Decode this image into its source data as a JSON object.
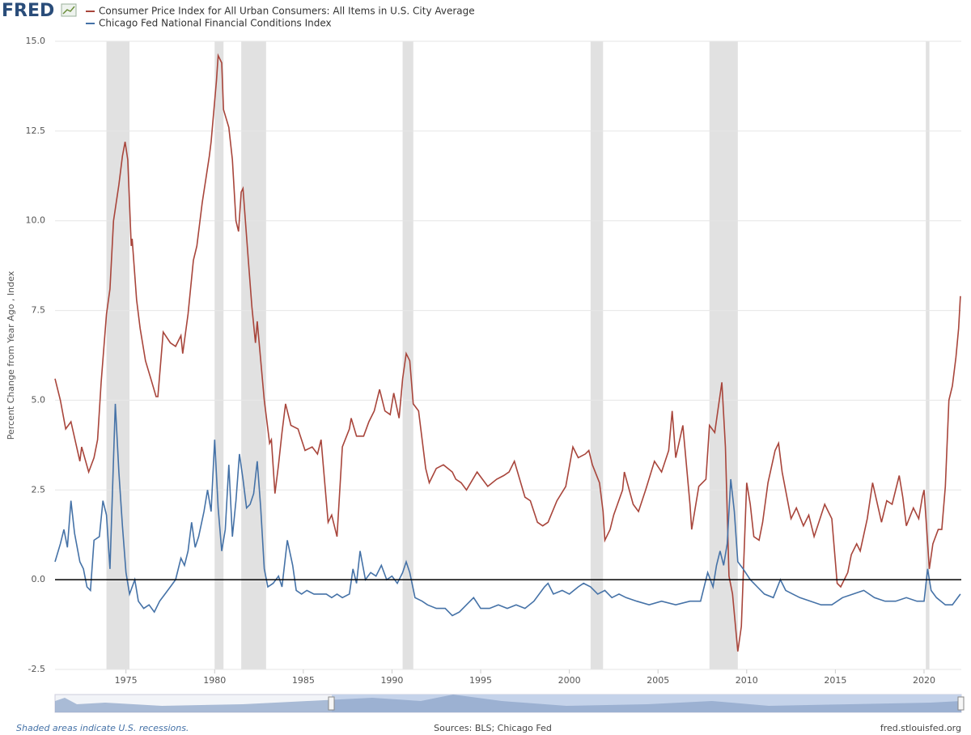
{
  "logo": "FRED",
  "chart_data": {
    "type": "line",
    "y_label": "Percent Change from Year Ago , Index",
    "series": [
      {
        "name": "Consumer Price Index for All Urban Consumers: All Items in U.S. City Average",
        "color": "#a8453b",
        "x": [
          1971.0,
          1971.3,
          1971.6,
          1971.9,
          1972.4,
          1972.5,
          1972.9,
          1973.2,
          1973.4,
          1973.6,
          1973.9,
          1974.1,
          1974.3,
          1974.6,
          1974.8,
          1974.95,
          1975.1,
          1975.3,
          1975.35,
          1975.6,
          1975.8,
          1976.1,
          1976.4,
          1976.7,
          1976.8,
          1977.1,
          1977.5,
          1977.8,
          1978.1,
          1978.2,
          1978.5,
          1978.8,
          1979.0,
          1979.3,
          1979.7,
          1979.8,
          1980.1,
          1980.2,
          1980.4,
          1980.5,
          1980.8,
          1981.0,
          1981.2,
          1981.35,
          1981.5,
          1981.6,
          1981.9,
          1982.1,
          1982.3,
          1982.4,
          1982.8,
          1983.1,
          1983.2,
          1983.4,
          1983.6,
          1983.8,
          1984.0,
          1984.3,
          1984.7,
          1985.1,
          1985.5,
          1985.8,
          1986.0,
          1986.4,
          1986.6,
          1986.9,
          1987.2,
          1987.6,
          1987.7,
          1988.0,
          1988.4,
          1988.7,
          1989.0,
          1989.3,
          1989.6,
          1989.9,
          1990.1,
          1990.4,
          1990.6,
          1990.8,
          1991.0,
          1991.2,
          1991.5,
          1991.9,
          1992.1,
          1992.5,
          1992.9,
          1993.4,
          1993.6,
          1993.9,
          1994.2,
          1994.8,
          1995.4,
          1995.9,
          1996.3,
          1996.6,
          1996.9,
          1997.5,
          1997.8,
          1998.2,
          1998.5,
          1998.8,
          1999.3,
          1999.8,
          2000.2,
          2000.5,
          2000.9,
          2001.1,
          2001.3,
          2001.7,
          2001.9,
          2002.0,
          2002.3,
          2002.5,
          2003.0,
          2003.1,
          2003.6,
          2003.9,
          2004.3,
          2004.8,
          2005.2,
          2005.6,
          2005.8,
          2006.0,
          2006.4,
          2006.8,
          2006.9,
          2007.3,
          2007.7,
          2007.9,
          2008.2,
          2008.6,
          2008.8,
          2009.0,
          2009.2,
          2009.5,
          2009.7,
          2010.0,
          2010.2,
          2010.4,
          2010.7,
          2010.9,
          2011.2,
          2011.6,
          2011.8,
          2012.0,
          2012.5,
          2012.8,
          2013.2,
          2013.5,
          2013.8,
          2014.0,
          2014.4,
          2014.8,
          2015.1,
          2015.3,
          2015.7,
          2015.9,
          2016.2,
          2016.4,
          2016.8,
          2017.1,
          2017.6,
          2017.9,
          2018.2,
          2018.6,
          2018.8,
          2019.0,
          2019.4,
          2019.7,
          2019.9,
          2020.0,
          2020.3,
          2020.5,
          2020.8,
          2021.0,
          2021.2,
          2021.4,
          2021.6,
          2021.8,
          2021.95,
          2022.05
        ],
        "values": [
          5.6,
          5.0,
          4.2,
          4.4,
          3.3,
          3.7,
          3.0,
          3.4,
          3.9,
          5.5,
          7.4,
          8.1,
          10.0,
          11.0,
          11.8,
          12.2,
          11.7,
          9.3,
          9.5,
          7.8,
          7.0,
          6.1,
          5.6,
          5.1,
          5.1,
          6.9,
          6.6,
          6.5,
          6.8,
          6.3,
          7.4,
          8.9,
          9.3,
          10.5,
          11.8,
          12.2,
          13.9,
          14.6,
          14.4,
          13.1,
          12.6,
          11.7,
          10.0,
          9.7,
          10.8,
          10.9,
          8.9,
          7.6,
          6.6,
          7.2,
          5.0,
          3.8,
          3.9,
          2.4,
          3.2,
          4.1,
          4.9,
          4.3,
          4.2,
          3.6,
          3.7,
          3.5,
          3.9,
          1.6,
          1.8,
          1.2,
          3.7,
          4.2,
          4.5,
          4.0,
          4.0,
          4.4,
          4.7,
          5.3,
          4.7,
          4.6,
          5.2,
          4.5,
          5.6,
          6.3,
          6.1,
          4.9,
          4.7,
          3.1,
          2.7,
          3.1,
          3.2,
          3.0,
          2.8,
          2.7,
          2.5,
          3.0,
          2.6,
          2.8,
          2.9,
          3.0,
          3.3,
          2.3,
          2.2,
          1.6,
          1.5,
          1.6,
          2.2,
          2.6,
          3.7,
          3.4,
          3.5,
          3.6,
          3.2,
          2.7,
          1.9,
          1.1,
          1.4,
          1.8,
          2.5,
          3.0,
          2.1,
          1.9,
          2.5,
          3.3,
          3.0,
          3.6,
          4.7,
          3.4,
          4.3,
          2.1,
          1.4,
          2.6,
          2.8,
          4.3,
          4.1,
          5.5,
          3.7,
          0.1,
          -0.4,
          -2.0,
          -1.3,
          2.7,
          2.1,
          1.2,
          1.1,
          1.6,
          2.7,
          3.6,
          3.8,
          3.0,
          1.7,
          2.0,
          1.5,
          1.8,
          1.2,
          1.5,
          2.1,
          1.7,
          -0.1,
          -0.2,
          0.2,
          0.7,
          1.0,
          0.8,
          1.7,
          2.7,
          1.6,
          2.2,
          2.1,
          2.9,
          2.3,
          1.5,
          2.0,
          1.7,
          2.3,
          2.5,
          0.3,
          1.0,
          1.4,
          1.4,
          2.6,
          5.0,
          5.4,
          6.2,
          7.0,
          7.9
        ]
      },
      {
        "name": "Chicago Fed National Financial Conditions Index",
        "color": "#4572a7",
        "x": [
          1971.0,
          1971.3,
          1971.5,
          1971.7,
          1971.9,
          1972.1,
          1972.4,
          1972.6,
          1972.8,
          1973.0,
          1973.2,
          1973.5,
          1973.7,
          1973.9,
          1974.1,
          1974.4,
          1974.6,
          1974.8,
          1975.0,
          1975.2,
          1975.5,
          1975.7,
          1976.0,
          1976.3,
          1976.6,
          1976.9,
          1977.2,
          1977.5,
          1977.8,
          1978.1,
          1978.3,
          1978.5,
          1978.7,
          1978.9,
          1979.1,
          1979.4,
          1979.6,
          1979.8,
          1980.0,
          1980.2,
          1980.4,
          1980.6,
          1980.8,
          1981.0,
          1981.2,
          1981.4,
          1981.6,
          1981.8,
          1982.0,
          1982.2,
          1982.4,
          1982.6,
          1982.8,
          1983.0,
          1983.3,
          1983.6,
          1983.8,
          1984.1,
          1984.4,
          1984.6,
          1984.9,
          1985.2,
          1985.6,
          1986.0,
          1986.3,
          1986.6,
          1986.9,
          1987.2,
          1987.6,
          1987.8,
          1988.0,
          1988.2,
          1988.5,
          1988.8,
          1989.1,
          1989.4,
          1989.7,
          1990.0,
          1990.3,
          1990.6,
          1990.8,
          1991.0,
          1991.3,
          1991.7,
          1992.0,
          1992.5,
          1993.0,
          1993.4,
          1993.8,
          1994.2,
          1994.6,
          1995.0,
          1995.5,
          1996.0,
          1996.5,
          1997.0,
          1997.5,
          1998.0,
          1998.6,
          1998.8,
          1999.1,
          1999.6,
          2000.0,
          2000.5,
          2000.8,
          2001.2,
          2001.6,
          2002.0,
          2002.4,
          2002.8,
          2003.2,
          2003.8,
          2004.5,
          2005.2,
          2006.0,
          2006.8,
          2007.4,
          2007.8,
          2008.1,
          2008.3,
          2008.5,
          2008.7,
          2008.9,
          2009.1,
          2009.3,
          2009.5,
          2009.8,
          2010.2,
          2010.6,
          2011.0,
          2011.5,
          2011.9,
          2012.2,
          2012.6,
          2013.0,
          2013.6,
          2014.2,
          2014.8,
          2015.4,
          2016.0,
          2016.6,
          2017.2,
          2017.8,
          2018.4,
          2019.0,
          2019.6,
          2020.0,
          2020.2,
          2020.4,
          2020.7,
          2021.2,
          2021.6,
          2022.05
        ],
        "values": [
          0.5,
          1.0,
          1.4,
          0.9,
          2.2,
          1.3,
          0.5,
          0.3,
          -0.2,
          -0.3,
          1.1,
          1.2,
          2.2,
          1.8,
          0.3,
          4.9,
          3.0,
          1.5,
          0.2,
          -0.4,
          0.0,
          -0.6,
          -0.8,
          -0.7,
          -0.9,
          -0.6,
          -0.4,
          -0.2,
          0.0,
          0.6,
          0.4,
          0.8,
          1.6,
          0.9,
          1.2,
          1.9,
          2.5,
          1.9,
          3.9,
          2.0,
          0.8,
          1.4,
          3.2,
          1.2,
          2.2,
          3.5,
          2.8,
          2.0,
          2.1,
          2.4,
          3.3,
          2.0,
          0.3,
          -0.2,
          -0.1,
          0.1,
          -0.2,
          1.1,
          0.4,
          -0.3,
          -0.4,
          -0.3,
          -0.4,
          -0.4,
          -0.4,
          -0.5,
          -0.4,
          -0.5,
          -0.4,
          0.3,
          -0.1,
          0.8,
          0.0,
          0.2,
          0.1,
          0.4,
          0.0,
          0.1,
          -0.1,
          0.2,
          0.5,
          0.2,
          -0.5,
          -0.6,
          -0.7,
          -0.8,
          -0.8,
          -1.0,
          -0.9,
          -0.7,
          -0.5,
          -0.8,
          -0.8,
          -0.7,
          -0.8,
          -0.7,
          -0.8,
          -0.6,
          -0.2,
          -0.1,
          -0.4,
          -0.3,
          -0.4,
          -0.2,
          -0.1,
          -0.2,
          -0.4,
          -0.3,
          -0.5,
          -0.4,
          -0.5,
          -0.6,
          -0.7,
          -0.6,
          -0.7,
          -0.6,
          -0.6,
          0.2,
          -0.2,
          0.4,
          0.8,
          0.4,
          1.0,
          2.8,
          1.9,
          0.5,
          0.3,
          0.0,
          -0.2,
          -0.4,
          -0.5,
          0.0,
          -0.3,
          -0.4,
          -0.5,
          -0.6,
          -0.7,
          -0.7,
          -0.5,
          -0.4,
          -0.3,
          -0.5,
          -0.6,
          -0.6,
          -0.5,
          -0.6,
          -0.6,
          0.3,
          -0.3,
          -0.5,
          -0.7,
          -0.7,
          -0.4
        ]
      }
    ],
    "recessions": [
      [
        1973.9,
        1975.2
      ],
      [
        1980.0,
        1980.5
      ],
      [
        1981.5,
        1982.9
      ],
      [
        1990.6,
        1991.2
      ],
      [
        2001.2,
        2001.9
      ],
      [
        2007.9,
        2009.5
      ],
      [
        2020.1,
        2020.3
      ]
    ],
    "recession_color": "#e1e1e1",
    "xlim": [
      1971.0,
      2022.1
    ],
    "xticks": [
      1975,
      1980,
      1985,
      1990,
      1995,
      2000,
      2005,
      2010,
      2015,
      2020
    ],
    "ylim": [
      -2.5,
      15
    ],
    "yticks": [
      {
        "value": 15,
        "label": "15.0"
      },
      12.5,
      {
        "value": 10,
        "label": "10.0"
      },
      7.5,
      {
        "value": 5,
        "label": "5.0"
      },
      2.5,
      {
        "value": 0,
        "label": "0.0"
      },
      -2.5
    ],
    "grid": true,
    "zero_line": true,
    "legend": "top-left",
    "footnote": "Shaded areas indicate U.S. recessions.",
    "source": "Sources: BLS; Chicago Fed",
    "site": "fred.stlouisfed.org"
  }
}
